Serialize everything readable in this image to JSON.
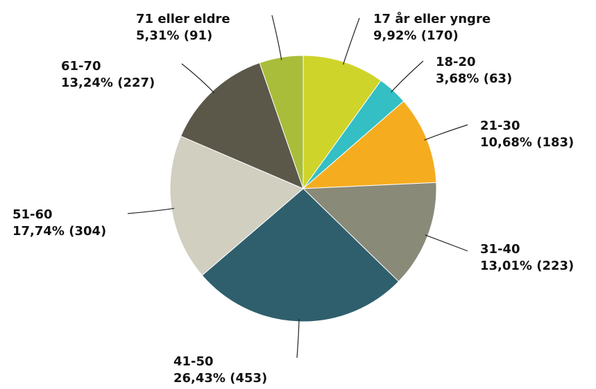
{
  "chart_data": {
    "type": "pie",
    "categories": [
      "17 år eller yngre",
      "18-20",
      "21-30",
      "31-40",
      "41-50",
      "51-60",
      "61-70",
      "71 eller eldre"
    ],
    "values": [
      9.92,
      3.68,
      10.68,
      13.01,
      26.43,
      17.74,
      13.24,
      5.31
    ],
    "counts": [
      170,
      63,
      183,
      223,
      453,
      304,
      227,
      91
    ],
    "value_labels": [
      "9,92% (170)",
      "3,68% (63)",
      "10,68% (183)",
      "13,01% (223)",
      "26,43% (453)",
      "17,74% (304)",
      "13,24% (227)",
      "5,31% (91)"
    ],
    "colors": [
      "#cfd42a",
      "#33bfc4",
      "#f5ad1f",
      "#898a78",
      "#2f5f6d",
      "#d0cfc0",
      "#5b584a",
      "#aabd3a"
    ]
  }
}
